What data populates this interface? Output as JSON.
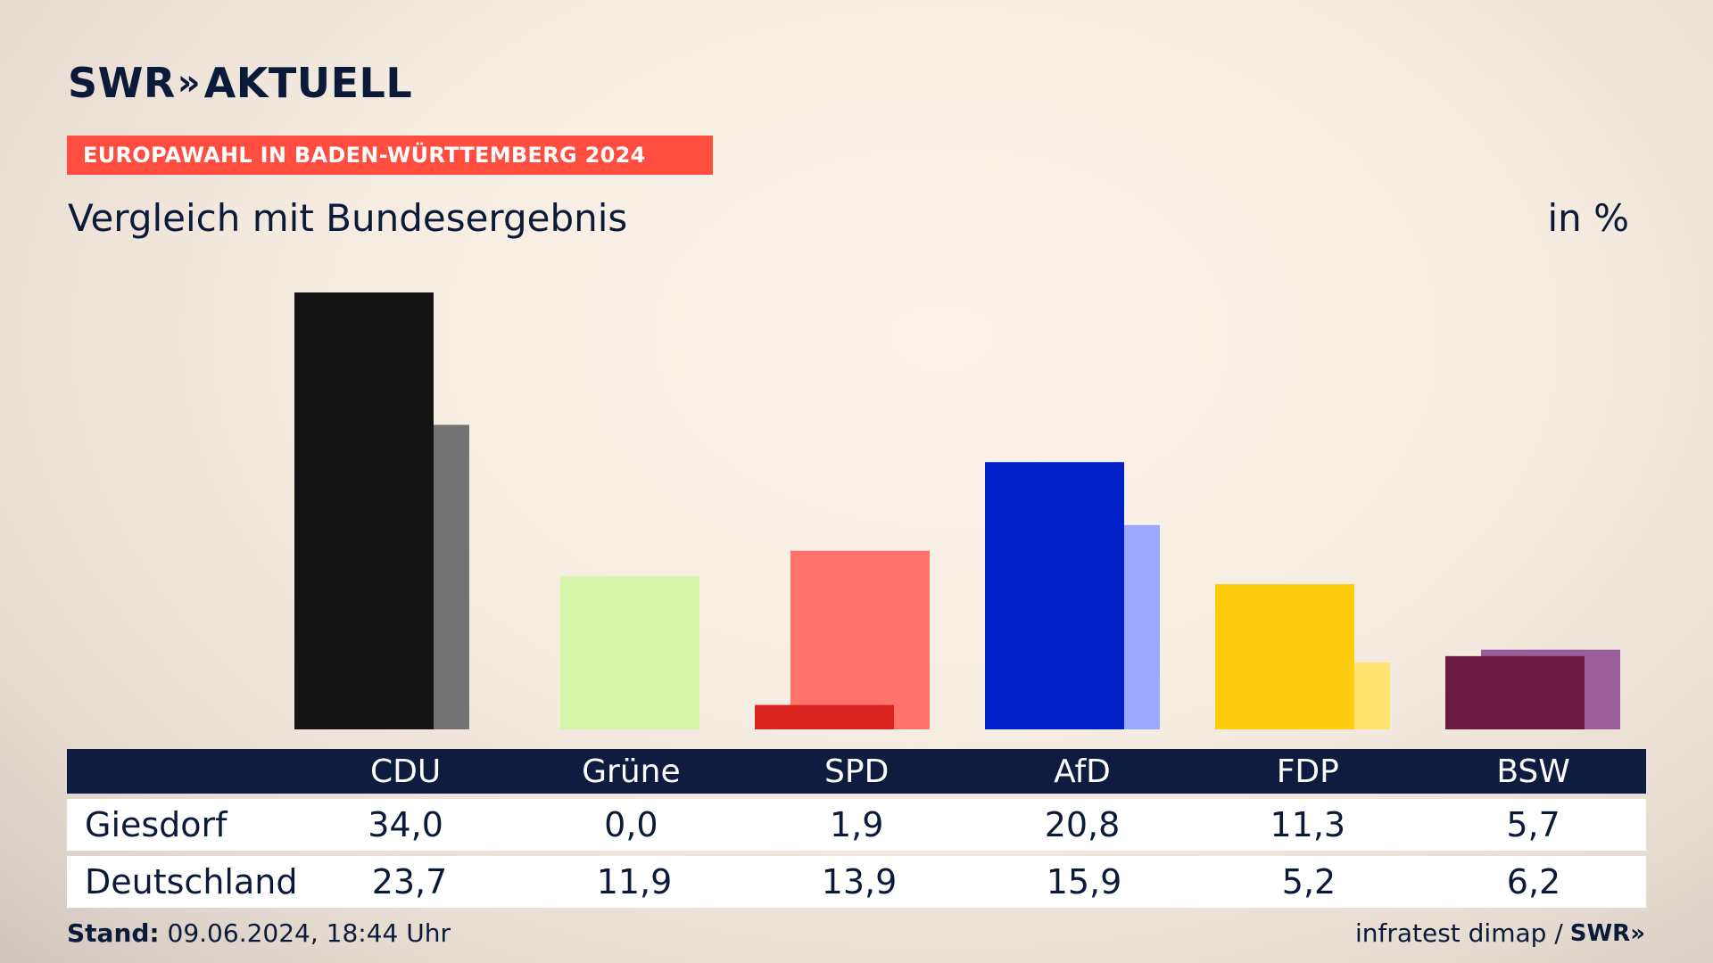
{
  "brand": {
    "name": "SWR",
    "chevrons": "»",
    "section": "AKTUELL"
  },
  "banner": "EUROPAWAHL IN BADEN-WÜRTTEMBERG 2024",
  "subtitle": "Vergleich mit Bundesergebnis",
  "unit": "in %",
  "footer": {
    "stand_label": "Stand:",
    "stand_value": "09.06.2024, 18:44 Uhr",
    "source": "infratest dimap /",
    "source_brand": "SWR»"
  },
  "chart_data": {
    "type": "bar",
    "categories": [
      "CDU",
      "Grüne",
      "SPD",
      "AfD",
      "FDP",
      "BSW"
    ],
    "series": [
      {
        "name": "Giesdorf",
        "values": [
          34.0,
          0.0,
          1.9,
          20.8,
          11.3,
          5.7
        ],
        "colors": [
          "#141414",
          "#d7f5a8",
          "#d9231e",
          "#0020c8",
          "#ffcd0f",
          "#6b1a3f"
        ]
      },
      {
        "name": "Deutschland",
        "values": [
          23.7,
          11.9,
          13.9,
          15.9,
          5.2,
          6.2
        ],
        "colors": [
          "#737373",
          "#d7f5a8",
          "#ff736b",
          "#9ba8ff",
          "#ffe36e",
          "#9a5f9a"
        ]
      }
    ],
    "value_labels": {
      "Giesdorf": [
        "34,0",
        "0,0",
        "1,9",
        "20,8",
        "11,3",
        "5,7"
      ],
      "Deutschland": [
        "23,7",
        "11,9",
        "13,9",
        "15,9",
        "5,2",
        "6,2"
      ]
    },
    "ylim": [
      0,
      34
    ]
  }
}
